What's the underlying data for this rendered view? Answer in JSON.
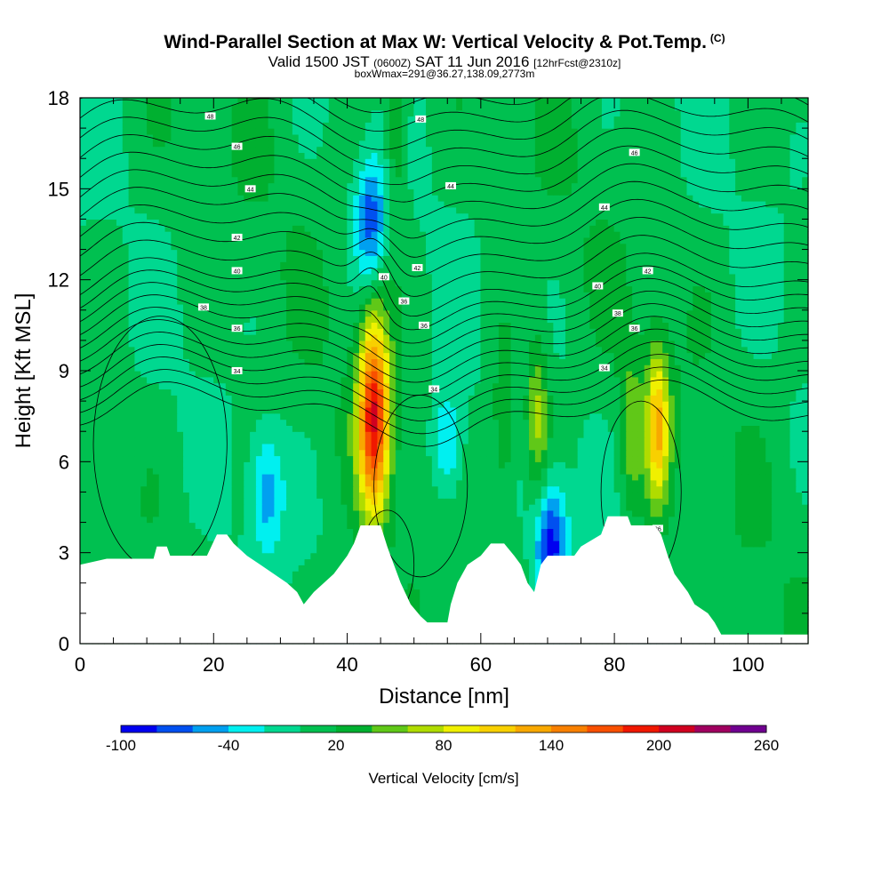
{
  "title": {
    "main": "Wind-Parallel Section at Max W: Vertical Velocity & Pot.Temp.",
    "copyright": "(C)",
    "valid_prefix": "Valid 1500 JST",
    "valid_z": "(0600Z)",
    "valid_date": "SAT 11 Jun 2016",
    "forecast": "[12hrFcst@2310z]",
    "boxline": "boxWmax=291@36.27,138.09,2773m"
  },
  "chart_data": {
    "type": "heatmap",
    "xlabel": "Distance [nm]",
    "ylabel": "Height [Kft MSL]",
    "xlim": [
      0,
      109
    ],
    "ylim": [
      0,
      18
    ],
    "x_ticks": [
      0,
      20,
      40,
      60,
      80,
      100
    ],
    "y_ticks": [
      0,
      3,
      6,
      9,
      12,
      15,
      18
    ],
    "colorbar": {
      "label": "Vertical Velocity [cm/s]",
      "tick_labels": [
        "-100",
        "-40",
        "20",
        "80",
        "140",
        "200",
        "260"
      ],
      "levels": [
        -100,
        -80,
        -60,
        -40,
        -20,
        0,
        20,
        40,
        60,
        80,
        100,
        120,
        140,
        160,
        180,
        200,
        220,
        240,
        260
      ],
      "colors": [
        "#0000f0",
        "#0050f0",
        "#00a0f0",
        "#00f0f0",
        "#00d890",
        "#00c050",
        "#00b030",
        "#60c818",
        "#b0dc00",
        "#f0f000",
        "#f8d000",
        "#f8a800",
        "#f88000",
        "#f85000",
        "#f01800",
        "#d00020",
        "#a00060",
        "#700090"
      ]
    },
    "terrain_kft": [
      [
        0,
        2.6
      ],
      [
        4,
        2.8
      ],
      [
        11,
        2.8
      ],
      [
        11.5,
        3.2
      ],
      [
        13,
        3.2
      ],
      [
        13.5,
        2.9
      ],
      [
        19,
        2.9
      ],
      [
        20.5,
        3.6
      ],
      [
        22,
        3.6
      ],
      [
        23,
        3.3
      ],
      [
        25,
        2.9
      ],
      [
        27,
        2.6
      ],
      [
        29,
        2.3
      ],
      [
        31,
        2.0
      ],
      [
        32.5,
        1.7
      ],
      [
        33.5,
        1.3
      ],
      [
        35,
        1.7
      ],
      [
        36.5,
        2.0
      ],
      [
        38,
        2.3
      ],
      [
        40,
        2.9
      ],
      [
        41,
        3.3
      ],
      [
        42,
        3.9
      ],
      [
        45,
        3.9
      ],
      [
        46,
        3.2
      ],
      [
        47,
        2.6
      ],
      [
        48,
        2.0
      ],
      [
        49.5,
        1.3
      ],
      [
        51,
        0.9
      ],
      [
        52,
        0.7
      ],
      [
        55,
        0.7
      ],
      [
        55.5,
        1.3
      ],
      [
        56.5,
        2.0
      ],
      [
        58,
        2.6
      ],
      [
        60,
        2.9
      ],
      [
        61.5,
        3.3
      ],
      [
        63.5,
        3.3
      ],
      [
        65,
        2.9
      ],
      [
        66,
        2.6
      ],
      [
        67,
        2.0
      ],
      [
        68,
        1.7
      ],
      [
        69,
        2.6
      ],
      [
        70,
        2.9
      ],
      [
        74,
        2.9
      ],
      [
        75,
        3.2
      ],
      [
        78,
        3.6
      ],
      [
        79,
        4.2
      ],
      [
        82,
        4.2
      ],
      [
        82.5,
        3.9
      ],
      [
        86,
        3.9
      ],
      [
        87,
        3.6
      ],
      [
        88,
        2.9
      ],
      [
        89,
        2.3
      ],
      [
        90,
        2.0
      ],
      [
        91,
        1.7
      ],
      [
        92,
        1.3
      ],
      [
        94,
        1.0
      ],
      [
        95,
        0.7
      ],
      [
        96,
        0.3
      ],
      [
        109,
        0.3
      ]
    ],
    "updraft_cores": [
      {
        "x": 44,
        "y_kft": 7.5,
        "max_cm_s": 200
      },
      {
        "x": 86.5,
        "y_kft": 7.2,
        "max_cm_s": 120
      },
      {
        "x": 68.5,
        "y_kft": 7.5,
        "max_cm_s": 80
      },
      {
        "x": 82.5,
        "y_kft": 7.0,
        "max_cm_s": 60
      },
      {
        "x": 47.5,
        "y_kft": 17.0,
        "max_cm_s": 60
      },
      {
        "x": 63.5,
        "y_kft": 7.5,
        "max_cm_s": 60
      }
    ],
    "downdraft_cores": [
      {
        "x": 43.5,
        "y_kft": 14.0,
        "min_cm_s": -60
      },
      {
        "x": 70.5,
        "y_kft": 3.3,
        "min_cm_s": -80
      },
      {
        "x": 28,
        "y_kft": 5.0,
        "min_cm_s": -40
      },
      {
        "x": 55,
        "y_kft": 6.5,
        "min_cm_s": -40
      }
    ],
    "theta_contour_labels": [
      {
        "text": "48",
        "x": 19.5,
        "y_kft": 17.4
      },
      {
        "text": "46",
        "x": 23.5,
        "y_kft": 16.4
      },
      {
        "text": "44",
        "x": 25.5,
        "y_kft": 15.0
      },
      {
        "text": "42",
        "x": 23.5,
        "y_kft": 13.4
      },
      {
        "text": "40",
        "x": 23.5,
        "y_kft": 12.3
      },
      {
        "text": "38",
        "x": 18.5,
        "y_kft": 11.1
      },
      {
        "text": "36",
        "x": 23.5,
        "y_kft": 10.4
      },
      {
        "text": "34",
        "x": 23.5,
        "y_kft": 9.0
      },
      {
        "text": "48",
        "x": 51,
        "y_kft": 17.3
      },
      {
        "text": "44",
        "x": 55.5,
        "y_kft": 15.1
      },
      {
        "text": "42",
        "x": 50.5,
        "y_kft": 12.4
      },
      {
        "text": "40",
        "x": 45.5,
        "y_kft": 12.1
      },
      {
        "text": "36",
        "x": 48.5,
        "y_kft": 11.3
      },
      {
        "text": "36",
        "x": 51.5,
        "y_kft": 10.5
      },
      {
        "text": "34",
        "x": 53,
        "y_kft": 8.4
      },
      {
        "text": "46",
        "x": 83,
        "y_kft": 16.2
      },
      {
        "text": "44",
        "x": 78.5,
        "y_kft": 14.4
      },
      {
        "text": "42",
        "x": 85,
        "y_kft": 12.3
      },
      {
        "text": "40",
        "x": 77.5,
        "y_kft": 11.8
      },
      {
        "text": "38",
        "x": 80.5,
        "y_kft": 10.9
      },
      {
        "text": "36",
        "x": 83,
        "y_kft": 10.4
      },
      {
        "text": "34",
        "x": 78.5,
        "y_kft": 9.1
      },
      {
        "text": "36",
        "x": 86.5,
        "y_kft": 3.8
      }
    ]
  }
}
